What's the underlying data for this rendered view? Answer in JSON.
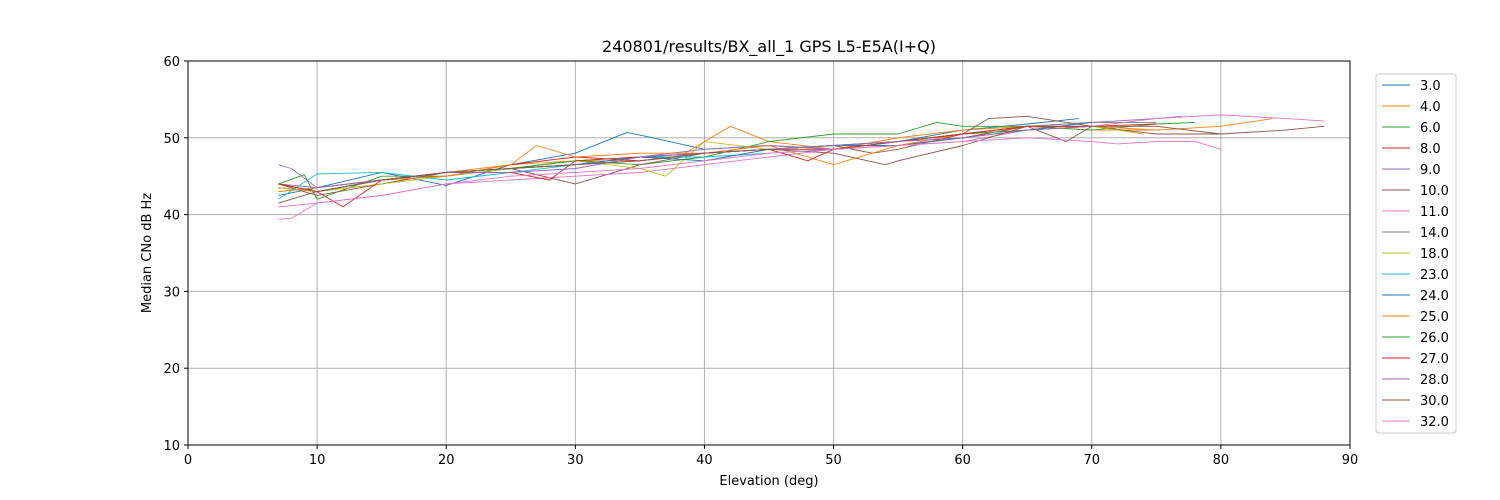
{
  "chart_data": {
    "type": "line",
    "title": "240801/results/BX_all_1 GPS L5-E5A(I+Q)",
    "xlabel": "Elevation (deg)",
    "ylabel": "Median CNo dB Hz",
    "xlim": [
      0,
      90
    ],
    "ylim": [
      10,
      60
    ],
    "xticks": [
      0,
      10,
      20,
      30,
      40,
      50,
      60,
      70,
      80,
      90
    ],
    "yticks": [
      10,
      20,
      30,
      40,
      50,
      60
    ],
    "grid": true,
    "legend_position": "right",
    "series": [
      {
        "name": "3.0",
        "color": "#1f77b4",
        "x": [
          7,
          10,
          15,
          20,
          25,
          30,
          34,
          36,
          40,
          45,
          50,
          55,
          60,
          65,
          69
        ],
        "y": [
          42.5,
          43.5,
          45.5,
          43.8,
          46.5,
          48.0,
          50.7,
          50.0,
          48.5,
          49.0,
          48.5,
          49.5,
          51.0,
          51.8,
          52.5
        ]
      },
      {
        "name": "4.0",
        "color": "#ff7f0e",
        "x": [
          7,
          10,
          15,
          20,
          25,
          30,
          35,
          38,
          42,
          45,
          50,
          55,
          60,
          65,
          70,
          75,
          80,
          84
        ],
        "y": [
          43.5,
          43.0,
          44.0,
          45.5,
          46.5,
          47.0,
          47.0,
          47.5,
          51.5,
          49.5,
          48.5,
          50.0,
          51.0,
          51.5,
          51.0,
          51.0,
          51.5,
          52.5
        ]
      },
      {
        "name": "6.0",
        "color": "#2ca02c",
        "x": [
          7,
          9,
          10,
          15,
          20,
          25,
          30,
          35,
          40,
          45,
          50,
          55,
          58,
          60,
          65,
          70,
          75,
          78
        ],
        "y": [
          44.0,
          45.2,
          42.0,
          45.0,
          45.0,
          46.0,
          47.0,
          46.5,
          47.5,
          49.5,
          50.5,
          50.5,
          52.0,
          51.5,
          51.5,
          51.0,
          51.8,
          52.0
        ]
      },
      {
        "name": "8.0",
        "color": "#d62728",
        "x": [
          7,
          10,
          15,
          20,
          25,
          30,
          35,
          40,
          45,
          50,
          55,
          60,
          65,
          70,
          75
        ],
        "y": [
          43.5,
          43.0,
          44.5,
          45.0,
          46.5,
          47.5,
          47.0,
          48.0,
          48.5,
          48.5,
          49.0,
          50.0,
          51.5,
          51.5,
          51.8
        ]
      },
      {
        "name": "9.0",
        "color": "#9467bd",
        "x": [
          7,
          10,
          15,
          20,
          25,
          30,
          35,
          40,
          45,
          50,
          55,
          60,
          65,
          70,
          75,
          77
        ],
        "y": [
          44.0,
          43.5,
          44.5,
          45.5,
          46.0,
          46.5,
          47.5,
          48.5,
          49.0,
          48.5,
          49.5,
          50.5,
          51.5,
          52.0,
          52.5,
          52.8
        ]
      },
      {
        "name": "10.0",
        "color": "#8c564b",
        "x": [
          7,
          10,
          15,
          20,
          25,
          30,
          35,
          40,
          45,
          50,
          53,
          55,
          60,
          62,
          65,
          70,
          75,
          80,
          85,
          88
        ],
        "y": [
          44.0,
          42.5,
          44.0,
          45.5,
          46.0,
          44.0,
          46.5,
          48.0,
          48.5,
          49.0,
          48.0,
          48.5,
          50.5,
          52.5,
          52.8,
          51.5,
          50.5,
          50.5,
          51.0,
          51.5
        ]
      },
      {
        "name": "11.0",
        "color": "#e377c2",
        "x": [
          7,
          8,
          10,
          15,
          20,
          25,
          30,
          35,
          40,
          45,
          50,
          55,
          60,
          65,
          70,
          75,
          80,
          85,
          88
        ],
        "y": [
          39.4,
          39.5,
          41.5,
          42.5,
          44.0,
          44.5,
          45.0,
          45.5,
          46.5,
          47.5,
          48.5,
          49.0,
          49.5,
          51.0,
          51.5,
          52.5,
          53.0,
          52.5,
          52.2
        ]
      },
      {
        "name": "14.0",
        "color": "#7f7f7f",
        "x": [
          7,
          10,
          15,
          20,
          25,
          30,
          35,
          40,
          45,
          50,
          55,
          60,
          65,
          70,
          75
        ],
        "y": [
          43.0,
          43.5,
          44.5,
          45.0,
          46.0,
          46.5,
          47.0,
          48.0,
          48.5,
          49.0,
          49.5,
          50.5,
          51.5,
          52.0,
          52.0
        ]
      },
      {
        "name": "18.0",
        "color": "#bcbd22",
        "x": [
          7,
          10,
          15,
          20,
          25,
          30,
          35,
          37,
          40,
          45,
          50,
          55,
          60,
          65,
          70,
          74
        ],
        "y": [
          43.5,
          43.0,
          44.0,
          45.0,
          46.0,
          47.0,
          46.0,
          45.0,
          49.5,
          48.5,
          49.0,
          49.5,
          50.5,
          51.0,
          51.5,
          50.5
        ]
      },
      {
        "name": "23.0",
        "color": "#17becf",
        "x": [
          7,
          10,
          15,
          20,
          25,
          30,
          35,
          40,
          45,
          50,
          55,
          60,
          65,
          70
        ],
        "y": [
          42.0,
          45.3,
          45.5,
          44.5,
          45.5,
          46.5,
          47.5,
          47.5,
          48.0,
          48.5,
          49.5,
          50.5,
          51.0,
          51.5
        ]
      },
      {
        "name": "24.0",
        "color": "#1f77b4",
        "x": [
          7,
          10,
          15,
          20,
          25,
          30,
          35,
          40,
          45,
          50,
          55,
          60,
          65,
          70
        ],
        "y": [
          44.0,
          43.0,
          44.5,
          45.5,
          46.0,
          46.5,
          47.5,
          47.0,
          48.5,
          49.0,
          49.0,
          50.0,
          51.0,
          52.0
        ]
      },
      {
        "name": "25.0",
        "color": "#ff7f0e",
        "x": [
          7,
          10,
          15,
          20,
          25,
          27,
          30,
          35,
          40,
          45,
          50,
          55,
          60,
          65,
          70,
          75
        ],
        "y": [
          43.0,
          43.5,
          44.5,
          45.0,
          46.5,
          49.0,
          47.5,
          48.0,
          48.0,
          49.0,
          46.5,
          49.0,
          50.5,
          51.5,
          51.5,
          51.0
        ]
      },
      {
        "name": "26.0",
        "color": "#2ca02c",
        "x": [
          7,
          10,
          15,
          20,
          25,
          30,
          35,
          40,
          45,
          50,
          55,
          60,
          65,
          70
        ],
        "y": [
          44.0,
          43.0,
          44.5,
          45.5,
          46.0,
          47.0,
          47.5,
          48.0,
          48.5,
          49.0,
          49.5,
          50.5,
          51.0,
          51.5
        ]
      },
      {
        "name": "27.0",
        "color": "#d62728",
        "x": [
          7,
          10,
          12,
          15,
          20,
          25,
          28,
          30,
          35,
          40,
          45,
          48,
          50,
          55,
          60,
          65,
          70
        ],
        "y": [
          44.0,
          43.0,
          41.0,
          44.5,
          45.5,
          45.5,
          44.5,
          47.0,
          47.5,
          48.0,
          48.5,
          47.0,
          48.5,
          49.5,
          50.5,
          51.5,
          51.5
        ]
      },
      {
        "name": "28.0",
        "color": "#9467bd",
        "x": [
          7,
          8,
          10,
          15,
          20,
          25,
          30,
          35,
          40,
          45,
          50,
          55,
          60,
          65,
          70
        ],
        "y": [
          46.5,
          46.0,
          43.5,
          44.5,
          45.5,
          45.5,
          46.0,
          47.5,
          48.0,
          48.5,
          49.0,
          49.5,
          50.0,
          51.0,
          51.5
        ]
      },
      {
        "name": "30.0",
        "color": "#8c564b",
        "x": [
          7,
          10,
          15,
          20,
          25,
          30,
          35,
          40,
          45,
          50,
          54,
          55,
          60,
          65,
          68,
          70,
          75,
          80
        ],
        "y": [
          41.5,
          43.0,
          44.5,
          45.5,
          46.0,
          46.5,
          47.0,
          48.0,
          48.5,
          48.0,
          46.5,
          47.0,
          49.0,
          51.5,
          49.5,
          51.5,
          51.5,
          50.5
        ]
      },
      {
        "name": "32.0",
        "color": "#e377c2",
        "x": [
          7,
          10,
          15,
          20,
          25,
          30,
          35,
          40,
          45,
          50,
          55,
          60,
          65,
          70,
          72,
          75,
          78,
          80
        ],
        "y": [
          41.0,
          41.5,
          42.5,
          44.0,
          45.0,
          45.5,
          46.0,
          47.0,
          48.0,
          48.5,
          49.0,
          49.5,
          50.0,
          49.5,
          49.2,
          49.5,
          49.5,
          48.5
        ]
      }
    ]
  }
}
